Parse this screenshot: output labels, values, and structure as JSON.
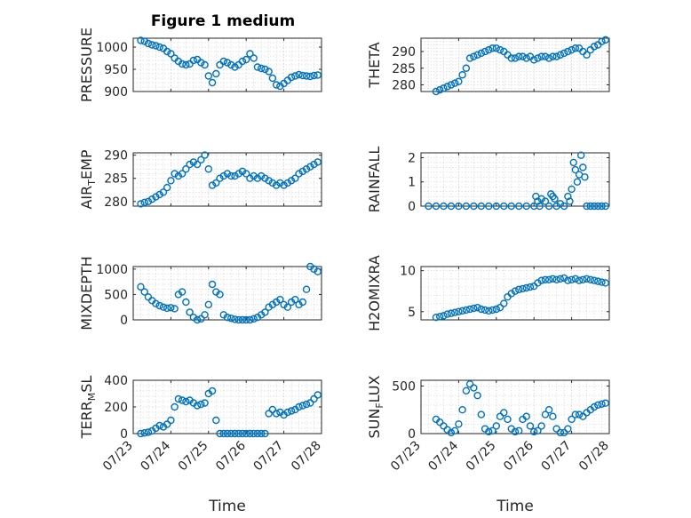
{
  "title": "Figure 1 medium",
  "marker_color": "#0072bd",
  "x_tick_labels": [
    "07/23",
    "07/24",
    "07/25",
    "07/26",
    "07/27",
    "07/28"
  ],
  "x_label": "Time",
  "chart_data": [
    {
      "type": "scatter",
      "ylabel": "PRESSURE",
      "ylim": [
        900,
        1020
      ],
      "yticks": [
        900,
        950,
        1000
      ],
      "xlim": [
        0,
        5
      ],
      "grid": true,
      "x": [
        0.2,
        0.3,
        0.4,
        0.5,
        0.6,
        0.7,
        0.8,
        0.9,
        1.0,
        1.1,
        1.2,
        1.3,
        1.4,
        1.5,
        1.6,
        1.7,
        1.8,
        1.9,
        2.0,
        2.1,
        2.2,
        2.3,
        2.4,
        2.5,
        2.6,
        2.7,
        2.8,
        2.9,
        3.0,
        3.1,
        3.2,
        3.3,
        3.4,
        3.5,
        3.6,
        3.7,
        3.8,
        3.9,
        4.0,
        4.1,
        4.2,
        4.3,
        4.4,
        4.5,
        4.6,
        4.7,
        4.8,
        4.9
      ],
      "y": [
        1015,
        1013,
        1008,
        1005,
        1003,
        1000,
        997,
        990,
        985,
        975,
        968,
        962,
        960,
        962,
        970,
        972,
        965,
        960,
        935,
        920,
        940,
        960,
        968,
        965,
        960,
        955,
        960,
        968,
        972,
        985,
        975,
        955,
        952,
        950,
        945,
        930,
        915,
        912,
        918,
        925,
        932,
        935,
        938,
        936,
        935,
        934,
        936,
        937
      ]
    },
    {
      "type": "scatter",
      "ylabel": "THETA",
      "ylim": [
        278,
        294
      ],
      "yticks": [
        280,
        285,
        290
      ],
      "xlim": [
        0,
        5
      ],
      "grid": true,
      "x": [
        0.4,
        0.5,
        0.6,
        0.7,
        0.8,
        0.9,
        1.0,
        1.1,
        1.2,
        1.3,
        1.4,
        1.5,
        1.6,
        1.7,
        1.8,
        1.9,
        2.0,
        2.1,
        2.2,
        2.3,
        2.4,
        2.5,
        2.6,
        2.7,
        2.8,
        2.9,
        3.0,
        3.1,
        3.2,
        3.3,
        3.4,
        3.5,
        3.6,
        3.7,
        3.8,
        3.9,
        4.0,
        4.1,
        4.2,
        4.3,
        4.4,
        4.5,
        4.6,
        4.7,
        4.8,
        4.9
      ],
      "y": [
        278,
        278.5,
        279,
        279.5,
        280,
        280.5,
        281,
        283,
        285,
        288,
        288.5,
        289,
        289.5,
        290,
        290.5,
        291,
        291,
        290.5,
        290,
        289,
        288,
        288,
        288.5,
        288.5,
        288,
        288.5,
        287.5,
        288,
        288.5,
        288.5,
        288,
        288.5,
        288.5,
        289,
        289.5,
        290,
        290.5,
        291,
        291,
        290,
        289,
        290.5,
        291.5,
        292,
        293,
        293.5
      ]
    },
    {
      "type": "scatter",
      "ylabel": "AIR_TEMP",
      "ylim": [
        279,
        290.5
      ],
      "yticks": [
        280,
        285,
        290
      ],
      "xlim": [
        0,
        5
      ],
      "grid": true,
      "x": [
        0.2,
        0.3,
        0.4,
        0.5,
        0.6,
        0.7,
        0.8,
        0.9,
        1.0,
        1.1,
        1.2,
        1.3,
        1.4,
        1.5,
        1.6,
        1.7,
        1.8,
        1.9,
        2.0,
        2.1,
        2.2,
        2.3,
        2.4,
        2.5,
        2.6,
        2.7,
        2.8,
        2.9,
        3.0,
        3.1,
        3.2,
        3.3,
        3.4,
        3.5,
        3.6,
        3.7,
        3.8,
        3.9,
        4.0,
        4.1,
        4.2,
        4.3,
        4.4,
        4.5,
        4.6,
        4.7,
        4.8,
        4.9
      ],
      "y": [
        279.5,
        279.8,
        280,
        280.5,
        281,
        281.5,
        282,
        283,
        284.5,
        286,
        285.5,
        286,
        287,
        288,
        288.5,
        288,
        289,
        290,
        287,
        283.5,
        284,
        285,
        285.5,
        286,
        285.5,
        285.5,
        286,
        286.5,
        286,
        285,
        285.5,
        285,
        285.5,
        285,
        284.5,
        284,
        283.5,
        284,
        283.5,
        284,
        284.5,
        285,
        286,
        286.5,
        287,
        287.5,
        288,
        288.5
      ]
    },
    {
      "type": "scatter",
      "ylabel": "RAINFALL",
      "ylim": [
        0,
        2.2
      ],
      "yticks": [
        0,
        1,
        2
      ],
      "xlim": [
        0,
        5
      ],
      "grid": true,
      "x": [
        0.2,
        0.4,
        0.6,
        0.8,
        1.0,
        1.2,
        1.4,
        1.6,
        1.8,
        2.0,
        2.2,
        2.4,
        2.6,
        2.8,
        3.0,
        3.05,
        3.1,
        3.15,
        3.2,
        3.3,
        3.4,
        3.45,
        3.5,
        3.55,
        3.6,
        3.7,
        3.8,
        3.9,
        3.95,
        4.0,
        4.05,
        4.1,
        4.15,
        4.2,
        4.25,
        4.3,
        4.35,
        4.4,
        4.5,
        4.6,
        4.7,
        4.8,
        4.9
      ],
      "y": [
        0,
        0,
        0,
        0,
        0,
        0,
        0,
        0,
        0,
        0,
        0,
        0,
        0,
        0,
        0,
        0.4,
        0.2,
        0,
        0.3,
        0.2,
        0,
        0.5,
        0.4,
        0.3,
        0,
        0.1,
        0,
        0.4,
        0.2,
        0.7,
        1.8,
        1.5,
        1.0,
        1.3,
        2.1,
        1.6,
        1.2,
        0,
        0,
        0,
        0,
        0,
        0
      ]
    },
    {
      "type": "scatter",
      "ylabel": "MIXDEPTH",
      "ylim": [
        0,
        1050
      ],
      "yticks": [
        0,
        500,
        1000
      ],
      "xlim": [
        0,
        5
      ],
      "grid": true,
      "x": [
        0.2,
        0.3,
        0.4,
        0.5,
        0.6,
        0.7,
        0.8,
        0.9,
        1.0,
        1.1,
        1.2,
        1.3,
        1.4,
        1.5,
        1.6,
        1.7,
        1.8,
        1.9,
        2.0,
        2.1,
        2.2,
        2.3,
        2.4,
        2.5,
        2.6,
        2.7,
        2.8,
        2.9,
        3.0,
        3.1,
        3.2,
        3.3,
        3.4,
        3.5,
        3.6,
        3.7,
        3.8,
        3.9,
        4.0,
        4.1,
        4.2,
        4.3,
        4.4,
        4.5,
        4.6,
        4.7,
        4.8,
        4.9
      ],
      "y": [
        650,
        550,
        450,
        380,
        320,
        280,
        250,
        230,
        240,
        220,
        500,
        550,
        350,
        150,
        50,
        0,
        20,
        100,
        300,
        700,
        550,
        500,
        100,
        50,
        30,
        10,
        0,
        0,
        0,
        0,
        20,
        50,
        100,
        150,
        250,
        300,
        350,
        400,
        300,
        250,
        350,
        400,
        300,
        350,
        600,
        1050,
        1000,
        950
      ]
    },
    {
      "type": "scatter",
      "ylabel": "H2OMIXRA",
      "ylim": [
        4,
        10.5
      ],
      "yticks": [
        5,
        10
      ],
      "xlim": [
        0,
        5
      ],
      "grid": true,
      "x": [
        0.4,
        0.5,
        0.6,
        0.7,
        0.8,
        0.9,
        1.0,
        1.1,
        1.2,
        1.3,
        1.4,
        1.5,
        1.6,
        1.7,
        1.8,
        1.9,
        2.0,
        2.1,
        2.2,
        2.3,
        2.4,
        2.5,
        2.6,
        2.7,
        2.8,
        2.9,
        3.0,
        3.1,
        3.2,
        3.3,
        3.4,
        3.5,
        3.6,
        3.7,
        3.8,
        3.9,
        4.0,
        4.1,
        4.2,
        4.3,
        4.4,
        4.5,
        4.6,
        4.7,
        4.8,
        4.9
      ],
      "y": [
        4.3,
        4.4,
        4.5,
        4.7,
        4.8,
        4.9,
        5.0,
        5.1,
        5.2,
        5.3,
        5.4,
        5.5,
        5.3,
        5.2,
        5.1,
        5.2,
        5.3,
        5.5,
        6.0,
        6.8,
        7.2,
        7.5,
        7.7,
        7.8,
        7.9,
        8.0,
        8.1,
        8.5,
        8.8,
        8.9,
        8.9,
        9.0,
        8.9,
        9.0,
        9.1,
        8.8,
        8.9,
        9.0,
        8.8,
        8.9,
        9.0,
        8.9,
        8.8,
        8.7,
        8.6,
        8.5
      ]
    },
    {
      "type": "scatter",
      "ylabel": "TERR_MSL",
      "ylim": [
        0,
        400
      ],
      "yticks": [
        0,
        200,
        400
      ],
      "xlim": [
        0,
        5
      ],
      "grid": true,
      "x": [
        0.2,
        0.3,
        0.4,
        0.5,
        0.6,
        0.7,
        0.8,
        0.9,
        1.0,
        1.1,
        1.2,
        1.3,
        1.4,
        1.5,
        1.6,
        1.7,
        1.8,
        1.9,
        2.0,
        2.1,
        2.2,
        2.3,
        2.4,
        2.5,
        2.6,
        2.7,
        2.8,
        2.9,
        3.0,
        3.1,
        3.2,
        3.3,
        3.4,
        3.5,
        3.6,
        3.7,
        3.8,
        3.9,
        4.0,
        4.1,
        4.2,
        4.3,
        4.4,
        4.5,
        4.6,
        4.7,
        4.8,
        4.9
      ],
      "y": [
        0,
        5,
        10,
        20,
        40,
        60,
        50,
        70,
        100,
        200,
        260,
        250,
        240,
        250,
        230,
        210,
        220,
        230,
        300,
        320,
        100,
        0,
        0,
        0,
        0,
        0,
        0,
        0,
        0,
        0,
        0,
        0,
        0,
        0,
        150,
        180,
        150,
        160,
        140,
        160,
        170,
        180,
        200,
        210,
        220,
        230,
        260,
        290
      ]
    },
    {
      "type": "scatter",
      "ylabel": "SUN_FLUX",
      "ylim": [
        0,
        560
      ],
      "yticks": [
        0,
        500
      ],
      "xlim": [
        0,
        5
      ],
      "grid": true,
      "x": [
        0.4,
        0.5,
        0.6,
        0.7,
        0.8,
        0.9,
        1.0,
        1.1,
        1.2,
        1.3,
        1.4,
        1.5,
        1.6,
        1.7,
        1.8,
        1.9,
        2.0,
        2.1,
        2.2,
        2.3,
        2.4,
        2.5,
        2.6,
        2.7,
        2.8,
        2.9,
        3.0,
        3.1,
        3.2,
        3.3,
        3.4,
        3.5,
        3.6,
        3.7,
        3.8,
        3.9,
        4.0,
        4.1,
        4.2,
        4.3,
        4.4,
        4.5,
        4.6,
        4.7,
        4.8,
        4.9
      ],
      "y": [
        150,
        120,
        80,
        40,
        10,
        30,
        100,
        250,
        450,
        520,
        480,
        400,
        200,
        50,
        20,
        30,
        80,
        180,
        220,
        150,
        50,
        20,
        30,
        150,
        180,
        80,
        20,
        30,
        80,
        200,
        250,
        180,
        50,
        10,
        10,
        50,
        150,
        200,
        200,
        180,
        220,
        250,
        280,
        300,
        310,
        320
      ]
    }
  ]
}
